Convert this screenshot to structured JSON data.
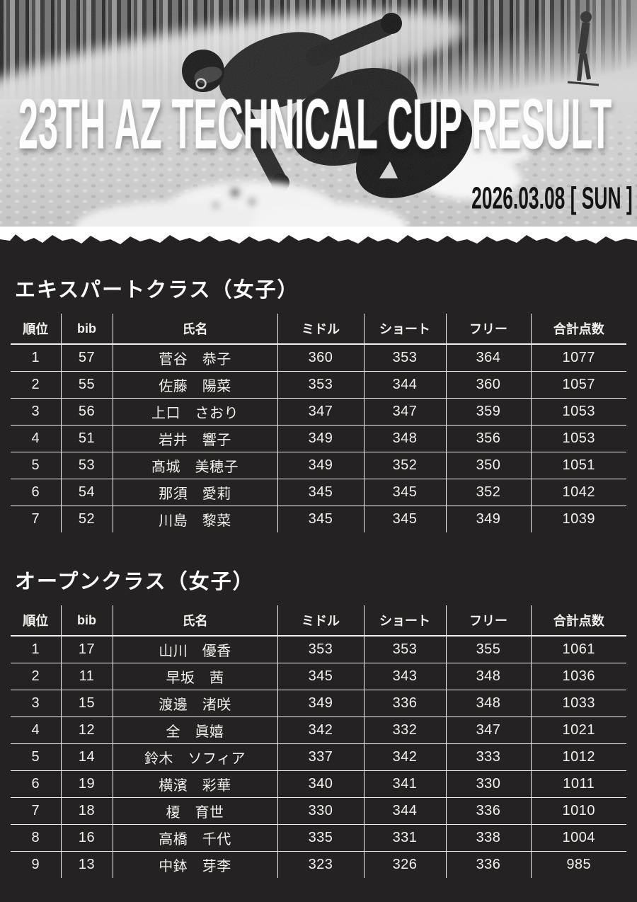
{
  "theme": {
    "background": "#252223",
    "table_text": "#f3f1ee",
    "table_line": "#f2f2f2",
    "hero_title_color": "#ffffff",
    "hero_date_color": "#151313"
  },
  "hero": {
    "title": "23TH AZ TECHNICAL CUP RESULT",
    "date": "2026.03.08 [ SUN ]",
    "photo_description": "black-and-white photo of a snowboarder carving on snow with trees behind"
  },
  "columns": [
    "順位",
    "bib",
    "氏名",
    "ミドル",
    "ショート",
    "フリー",
    "合計点数"
  ],
  "sections": [
    {
      "title": "エキスパートクラス（女子）",
      "rows": [
        [
          "1",
          "57",
          "菅谷　恭子",
          "360",
          "353",
          "364",
          "1077"
        ],
        [
          "2",
          "55",
          "佐藤　陽菜",
          "353",
          "344",
          "360",
          "1057"
        ],
        [
          "3",
          "56",
          "上口　さおり",
          "347",
          "347",
          "359",
          "1053"
        ],
        [
          "4",
          "51",
          "岩井　響子",
          "349",
          "348",
          "356",
          "1053"
        ],
        [
          "5",
          "53",
          "髙城　美穂子",
          "349",
          "352",
          "350",
          "1051"
        ],
        [
          "6",
          "54",
          "那須　愛莉",
          "345",
          "345",
          "352",
          "1042"
        ],
        [
          "7",
          "52",
          "川島　黎菜",
          "345",
          "345",
          "349",
          "1039"
        ]
      ]
    },
    {
      "title": "オープンクラス（女子）",
      "rows": [
        [
          "1",
          "17",
          "山川　優香",
          "353",
          "353",
          "355",
          "1061"
        ],
        [
          "2",
          "11",
          "早坂　茜",
          "345",
          "343",
          "348",
          "1036"
        ],
        [
          "3",
          "15",
          "渡邊　渚咲",
          "349",
          "336",
          "348",
          "1033"
        ],
        [
          "4",
          "12",
          "全　眞嬉",
          "342",
          "332",
          "347",
          "1021"
        ],
        [
          "5",
          "14",
          "鈴木　ソフィア",
          "337",
          "342",
          "333",
          "1012"
        ],
        [
          "6",
          "19",
          "横濱　彩華",
          "340",
          "341",
          "330",
          "1011"
        ],
        [
          "7",
          "18",
          "榎　育世",
          "330",
          "344",
          "336",
          "1010"
        ],
        [
          "8",
          "16",
          "高橋　千代",
          "335",
          "331",
          "338",
          "1004"
        ],
        [
          "9",
          "13",
          "中鉢　芽李",
          "323",
          "326",
          "336",
          "985"
        ]
      ]
    }
  ]
}
